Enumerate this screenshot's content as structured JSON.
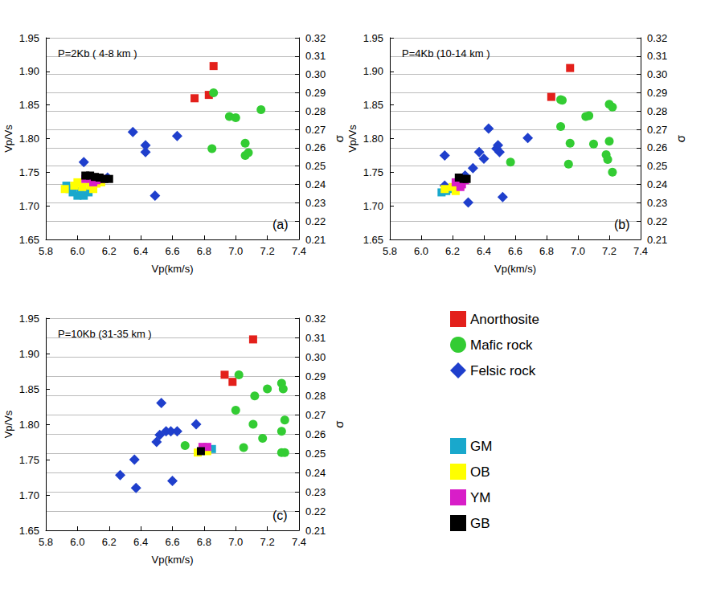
{
  "chart_data": [
    {
      "type": "scatter",
      "title": "P=2Kb ( 4-8 km )",
      "annotation": "(a)",
      "x_label": "Vp(km/s)",
      "y_label": "Vp/Vs",
      "y2_label": "σ",
      "xlim": [
        5.8,
        7.4
      ],
      "xticks": [
        5.8,
        {
          "value": 6,
          "label": "6.0"
        },
        6.2,
        6.4,
        6.6,
        6.8,
        {
          "value": 7,
          "label": "7.0"
        },
        7.2,
        7.4
      ],
      "ylim": [
        1.65,
        1.95
      ],
      "yticks": [
        1.65,
        {
          "value": 1.7,
          "label": "1.70"
        },
        1.75,
        {
          "value": 1.8,
          "label": "1.80"
        },
        1.85,
        {
          "value": 1.9,
          "label": "1.90"
        },
        1.95
      ],
      "y2lim": [
        0.21,
        0.32
      ],
      "y2ticks": [
        0.21,
        0.22,
        0.23,
        0.24,
        0.25,
        0.26,
        0.27,
        0.28,
        0.29,
        {
          "value": 0.3,
          "label": "0.30"
        },
        0.31,
        0.32
      ],
      "grid": true,
      "series": [
        {
          "name": "Anorthosite",
          "color": "#e3201b",
          "marker": "square",
          "x": [
            6.74,
            6.83,
            6.86
          ],
          "y": [
            1.86,
            1.865,
            1.908
          ]
        },
        {
          "name": "Mafic rock",
          "color": "#33cc33",
          "marker": "circle",
          "x": [
            6.86,
            6.96,
            7.0,
            7.16,
            6.85,
            7.06,
            7.06,
            7.08
          ],
          "y": [
            1.868,
            1.833,
            1.831,
            1.843,
            1.785,
            1.793,
            1.775,
            1.779
          ]
        },
        {
          "name": "Felsic rock",
          "color": "#1f3fcc",
          "marker": "diamond",
          "x": [
            6.35,
            6.43,
            6.43,
            6.63,
            6.49,
            6.04,
            6.19
          ],
          "y": [
            1.81,
            1.79,
            1.78,
            1.804,
            1.715,
            1.765,
            1.742
          ]
        },
        {
          "name": "GM",
          "color": "#19a8cc",
          "marker": "square",
          "x": [
            5.93,
            5.97,
            6.0,
            6.04,
            6.07,
            5.95,
            6.02
          ],
          "y": [
            1.73,
            1.72,
            1.715,
            1.715,
            1.72,
            1.725,
            1.722
          ]
        },
        {
          "name": "OB",
          "color": "#ffff00",
          "marker": "square",
          "x": [
            5.92,
            5.98,
            6.03,
            6.08,
            6.12,
            6.0,
            6.1,
            6.15
          ],
          "y": [
            1.725,
            1.73,
            1.728,
            1.73,
            1.733,
            1.735,
            1.725,
            1.735
          ]
        },
        {
          "name": "YM",
          "color": "#d81ec8",
          "marker": "square",
          "x": [
            6.05,
            6.08,
            6.12,
            6.15,
            6.1
          ],
          "y": [
            1.74,
            1.742,
            1.738,
            1.74,
            1.735
          ]
        },
        {
          "name": "GB",
          "color": "#000000",
          "marker": "square",
          "x": [
            6.05,
            6.08,
            6.11,
            6.14,
            6.17,
            6.2
          ],
          "y": [
            1.745,
            1.745,
            1.743,
            1.742,
            1.74,
            1.74
          ]
        }
      ]
    },
    {
      "type": "scatter",
      "title": "P=4Kb (10-14 km )",
      "annotation": "(b)",
      "x_label": "Vp(km/s)",
      "y_label": "Vp/Vs",
      "y2_label": "σ",
      "xlim": [
        5.8,
        7.4
      ],
      "xticks": [
        5.8,
        {
          "value": 6,
          "label": "6.0"
        },
        6.2,
        6.4,
        6.6,
        6.8,
        {
          "value": 7,
          "label": "7.0"
        },
        7.2,
        7.4
      ],
      "ylim": [
        1.65,
        1.95
      ],
      "yticks": [
        1.65,
        {
          "value": 1.7,
          "label": "1.70"
        },
        1.75,
        {
          "value": 1.8,
          "label": "1.80"
        },
        1.85,
        {
          "value": 1.9,
          "label": "1.90"
        },
        1.95
      ],
      "y2lim": [
        0.21,
        0.32
      ],
      "y2ticks": [
        0.21,
        0.22,
        0.23,
        0.24,
        0.25,
        0.26,
        0.27,
        0.28,
        0.29,
        {
          "value": 0.3,
          "label": "0.30"
        },
        0.31,
        0.32
      ],
      "grid": true,
      "series": [
        {
          "name": "Anorthosite",
          "color": "#e3201b",
          "marker": "square",
          "x": [
            6.83,
            6.95
          ],
          "y": [
            1.862,
            1.905
          ]
        },
        {
          "name": "Mafic rock",
          "color": "#33cc33",
          "marker": "circle",
          "x": [
            6.89,
            6.9,
            6.89,
            7.05,
            7.07,
            7.2,
            7.22,
            6.57,
            6.95,
            6.94,
            7.1,
            7.2,
            7.18,
            7.19,
            7.22
          ],
          "y": [
            1.858,
            1.857,
            1.818,
            1.833,
            1.834,
            1.851,
            1.847,
            1.765,
            1.793,
            1.762,
            1.792,
            1.796,
            1.776,
            1.769,
            1.75
          ]
        },
        {
          "name": "Felsic rock",
          "color": "#1f3fcc",
          "marker": "diamond",
          "x": [
            6.15,
            6.43,
            6.68,
            6.37,
            6.4,
            6.33,
            6.48,
            6.49,
            6.5,
            6.28,
            6.3,
            6.52,
            6.15
          ],
          "y": [
            1.775,
            1.815,
            1.801,
            1.78,
            1.77,
            1.756,
            1.785,
            1.79,
            1.78,
            1.745,
            1.705,
            1.713,
            1.73
          ]
        },
        {
          "name": "GM",
          "color": "#19a8cc",
          "marker": "square",
          "x": [
            6.13,
            6.16,
            6.2
          ],
          "y": [
            1.72,
            1.722,
            1.725
          ]
        },
        {
          "name": "OB",
          "color": "#ffff00",
          "marker": "square",
          "x": [
            6.15,
            6.2,
            6.25,
            6.22
          ],
          "y": [
            1.725,
            1.728,
            1.73,
            1.722
          ]
        },
        {
          "name": "YM",
          "color": "#d81ec8",
          "marker": "square",
          "x": [
            6.22,
            6.26,
            6.28,
            6.25
          ],
          "y": [
            1.735,
            1.732,
            1.738,
            1.728
          ]
        },
        {
          "name": "GB",
          "color": "#000000",
          "marker": "square",
          "x": [
            6.24,
            6.27,
            6.29
          ],
          "y": [
            1.742,
            1.74,
            1.74
          ]
        }
      ]
    },
    {
      "type": "scatter",
      "title": "P=10Kb (31-35 km )",
      "annotation": "(c)",
      "x_label": "Vp(km/s)",
      "y_label": "Vp/Vs",
      "y2_label": "σ",
      "xlim": [
        5.8,
        7.4
      ],
      "xticks": [
        5.8,
        {
          "value": 6,
          "label": "6.0"
        },
        6.2,
        6.4,
        6.6,
        6.8,
        {
          "value": 7,
          "label": "7.0"
        },
        7.2,
        7.4
      ],
      "ylim": [
        1.65,
        1.95
      ],
      "yticks": [
        1.65,
        {
          "value": 1.7,
          "label": "1.70"
        },
        1.75,
        {
          "value": 1.8,
          "label": "1.80"
        },
        1.85,
        {
          "value": 1.9,
          "label": "1.90"
        },
        1.95
      ],
      "y2lim": [
        0.21,
        0.32
      ],
      "y2ticks": [
        0.21,
        0.22,
        0.23,
        0.24,
        0.25,
        0.26,
        0.27,
        0.28,
        0.29,
        {
          "value": 0.3,
          "label": "0.30"
        },
        0.31,
        0.32
      ],
      "grid": true,
      "legend": "right",
      "series": [
        {
          "name": "Anorthosite",
          "color": "#e3201b",
          "marker": "square",
          "x": [
            6.93,
            6.98,
            7.11
          ],
          "y": [
            1.87,
            1.86,
            1.92
          ]
        },
        {
          "name": "Mafic rock",
          "color": "#33cc33",
          "marker": "circle",
          "x": [
            7.02,
            7.12,
            7.2,
            7.29,
            7.3,
            7.0,
            7.11,
            7.17,
            7.31,
            7.29,
            6.68,
            7.05,
            7.29,
            7.31
          ],
          "y": [
            1.87,
            1.84,
            1.85,
            1.858,
            1.85,
            1.82,
            1.8,
            1.78,
            1.806,
            1.79,
            1.77,
            1.767,
            1.76,
            1.76
          ]
        },
        {
          "name": "Felsic rock",
          "color": "#1f3fcc",
          "marker": "diamond",
          "x": [
            6.27,
            6.36,
            6.37,
            6.53,
            6.5,
            6.52,
            6.56,
            6.59,
            6.63,
            6.75,
            6.6
          ],
          "y": [
            1.728,
            1.75,
            1.71,
            1.83,
            1.775,
            1.785,
            1.79,
            1.79,
            1.79,
            1.8,
            1.72
          ]
        },
        {
          "name": "GM",
          "color": "#19a8cc",
          "marker": "square",
          "x": [
            6.85
          ],
          "y": [
            1.765
          ]
        },
        {
          "name": "OB",
          "color": "#ffff00",
          "marker": "square",
          "x": [
            6.76,
            6.79,
            6.82
          ],
          "y": [
            1.76,
            1.765,
            1.762
          ]
        },
        {
          "name": "YM",
          "color": "#d81ec8",
          "marker": "square",
          "x": [
            6.79,
            6.82
          ],
          "y": [
            1.768,
            1.768
          ]
        },
        {
          "name": "GB",
          "color": "#000000",
          "marker": "square",
          "x": [
            6.78
          ],
          "y": [
            1.762
          ]
        }
      ]
    }
  ]
}
